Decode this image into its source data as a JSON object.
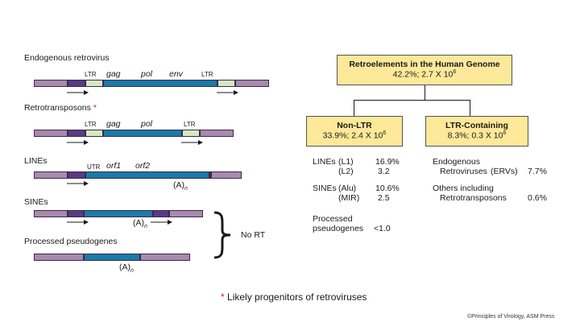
{
  "left": {
    "erv": {
      "title": "Endogenous retrovirus",
      "ltr1": "LTR",
      "gag": "gag",
      "pol": "pol",
      "env": "env",
      "ltr2": "LTR"
    },
    "retro": {
      "title": "Retrotransposons",
      "star": "*",
      "ltr1": "LTR",
      "gag": "gag",
      "pol": "pol",
      "ltr2": "LTR"
    },
    "lines": {
      "title": "LINEs",
      "utr": "UTR",
      "orf1": "orf1",
      "orf2": "orf2",
      "polyA": "(A)",
      "polyA_sub": "n"
    },
    "sines": {
      "title": "SINEs",
      "polyA": "(A)",
      "polyA_sub": "n"
    },
    "pseudo": {
      "title": "Processed pseudogenes",
      "polyA": "(A)",
      "polyA_sub": "n"
    },
    "no_rt": "No RT"
  },
  "right": {
    "root": {
      "title": "Retroelements in the Human Genome",
      "sub": "42.2%; 2.7 X 10",
      "sup": "6"
    },
    "nonltr": {
      "title": "Non-LTR",
      "sub": "33.9%; 2.4 X 10",
      "sup": "6"
    },
    "ltrc": {
      "title": "LTR-Containing",
      "sub": "8.3%; 0.3 X 10",
      "sup": "6"
    },
    "nonltr_table": {
      "lines_label": "LINEs",
      "l1_label": "(L1)",
      "l1_val": "16.9%",
      "l2_label": "(L2)",
      "l2_val": "3.2",
      "sines_label": "SINEs",
      "alu_label": "(Alu)",
      "alu_val": "10.6%",
      "mir_label": "(MIR)",
      "mir_val": "2.5",
      "pp_label1": "Processed",
      "pp_label2": "pseudogenes",
      "pp_val": "<1.0"
    },
    "ltr_table": {
      "erv_label1": "Endogenous",
      "erv_label2": "Retroviruses",
      "erv_abbr": "(ERVs)",
      "erv_val": "7.7%",
      "other_label1": "Others including",
      "other_label2": "Retrotransposons",
      "other_val": "0.6%"
    }
  },
  "footnote": {
    "star": "*",
    "text": "Likely progenitors of retroviruses"
  },
  "credit": "©Principles of Virology, ASM Press"
}
